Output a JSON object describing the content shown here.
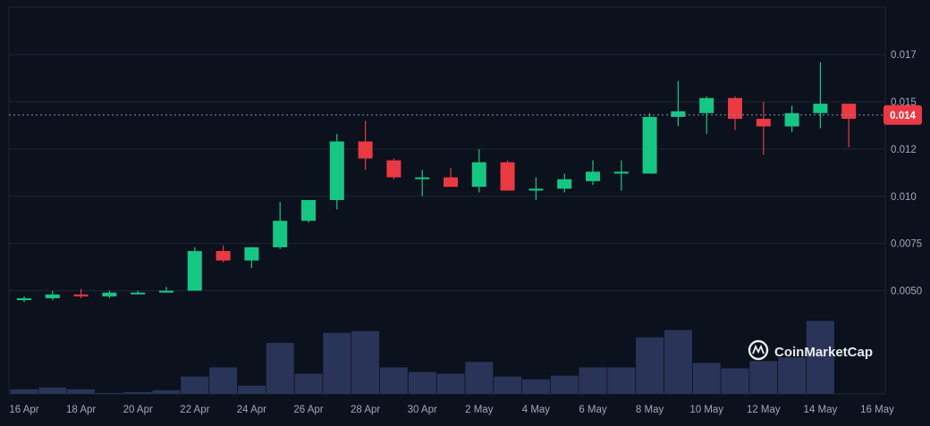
{
  "chart_data": {
    "type": "candlestick",
    "title": "",
    "xlabel": "",
    "ylabel": "",
    "ylim": [
      0.003,
      0.019
    ],
    "y_ticks": [
      {
        "value": 0.005,
        "label": "0.0050"
      },
      {
        "value": 0.0075,
        "label": "0.0075"
      },
      {
        "value": 0.01,
        "label": "0.010"
      },
      {
        "value": 0.0125,
        "label": "0.012"
      },
      {
        "value": 0.015,
        "label": "0.015"
      },
      {
        "value": 0.0175,
        "label": "0.017"
      }
    ],
    "x_tick_labels": [
      "16 Apr",
      "18 Apr",
      "20 Apr",
      "22 Apr",
      "24 Apr",
      "26 Apr",
      "28 Apr",
      "30 Apr",
      "2 May",
      "4 May",
      "6 May",
      "8 May",
      "10 May",
      "12 May",
      "14 May",
      "16 May"
    ],
    "last_price": 0.0143,
    "last_price_label": "0.014",
    "watermark": "CoinMarketCap",
    "grid": true,
    "colors": {
      "up": "#16c784",
      "down": "#ea3943",
      "volume": "#2a3458",
      "background": "#0b111d",
      "grid": "#1f2633",
      "text": "#a1a7bb"
    },
    "series": [
      {
        "date": "16 Apr",
        "open": 0.0045,
        "high": 0.0047,
        "low": 0.0044,
        "close": 0.0046,
        "volume": 5
      },
      {
        "date": "17 Apr",
        "open": 0.0046,
        "high": 0.005,
        "low": 0.0045,
        "close": 0.0048,
        "volume": 7
      },
      {
        "date": "18 Apr",
        "open": 0.0048,
        "high": 0.0051,
        "low": 0.0046,
        "close": 0.0047,
        "volume": 5
      },
      {
        "date": "19 Apr",
        "open": 0.0047,
        "high": 0.005,
        "low": 0.0046,
        "close": 0.0049,
        "volume": 1
      },
      {
        "date": "20 Apr",
        "open": 0.0049,
        "high": 0.005,
        "low": 0.0048,
        "close": 0.0049,
        "volume": 2
      },
      {
        "date": "21 Apr",
        "open": 0.0049,
        "high": 0.0052,
        "low": 0.0049,
        "close": 0.005,
        "volume": 4
      },
      {
        "date": "22 Apr",
        "open": 0.005,
        "high": 0.0073,
        "low": 0.005,
        "close": 0.0071,
        "volume": 19
      },
      {
        "date": "23 Apr",
        "open": 0.0071,
        "high": 0.0074,
        "low": 0.0065,
        "close": 0.0066,
        "volume": 29
      },
      {
        "date": "24 Apr",
        "open": 0.0066,
        "high": 0.0073,
        "low": 0.0062,
        "close": 0.0073,
        "volume": 9
      },
      {
        "date": "25 Apr",
        "open": 0.0073,
        "high": 0.0097,
        "low": 0.0072,
        "close": 0.0087,
        "volume": 56
      },
      {
        "date": "26 Apr",
        "open": 0.0087,
        "high": 0.0098,
        "low": 0.0086,
        "close": 0.0098,
        "volume": 22
      },
      {
        "date": "27 Apr",
        "open": 0.0098,
        "high": 0.0133,
        "low": 0.0093,
        "close": 0.0129,
        "volume": 67
      },
      {
        "date": "28 Apr",
        "open": 0.0129,
        "high": 0.014,
        "low": 0.0114,
        "close": 0.012,
        "volume": 69
      },
      {
        "date": "29 Apr",
        "open": 0.0119,
        "high": 0.012,
        "low": 0.0109,
        "close": 0.011,
        "volume": 29
      },
      {
        "date": "30 Apr",
        "open": 0.011,
        "high": 0.0114,
        "low": 0.01,
        "close": 0.011,
        "volume": 24
      },
      {
        "date": "1 May",
        "open": 0.011,
        "high": 0.0115,
        "low": 0.0105,
        "close": 0.0105,
        "volume": 22
      },
      {
        "date": "2 May",
        "open": 0.0105,
        "high": 0.0125,
        "low": 0.0102,
        "close": 0.0118,
        "volume": 35
      },
      {
        "date": "3 May",
        "open": 0.0118,
        "high": 0.0119,
        "low": 0.0103,
        "close": 0.0103,
        "volume": 19
      },
      {
        "date": "4 May",
        "open": 0.0103,
        "high": 0.011,
        "low": 0.0098,
        "close": 0.0104,
        "volume": 16
      },
      {
        "date": "5 May",
        "open": 0.0104,
        "high": 0.0112,
        "low": 0.0102,
        "close": 0.0109,
        "volume": 20
      },
      {
        "date": "6 May",
        "open": 0.0108,
        "high": 0.0119,
        "low": 0.0106,
        "close": 0.0113,
        "volume": 29
      },
      {
        "date": "7 May",
        "open": 0.0112,
        "high": 0.0119,
        "low": 0.0103,
        "close": 0.0113,
        "volume": 29
      },
      {
        "date": "8 May",
        "open": 0.0112,
        "high": 0.0144,
        "low": 0.0112,
        "close": 0.0142,
        "volume": 62
      },
      {
        "date": "9 May",
        "open": 0.0142,
        "high": 0.0161,
        "low": 0.0137,
        "close": 0.0145,
        "volume": 70
      },
      {
        "date": "10 May",
        "open": 0.0144,
        "high": 0.0153,
        "low": 0.0133,
        "close": 0.0152,
        "volume": 34
      },
      {
        "date": "11 May",
        "open": 0.0152,
        "high": 0.0153,
        "low": 0.0135,
        "close": 0.0141,
        "volume": 28
      },
      {
        "date": "12 May",
        "open": 0.0141,
        "high": 0.015,
        "low": 0.0122,
        "close": 0.0137,
        "volume": 36
      },
      {
        "date": "13 May",
        "open": 0.0137,
        "high": 0.0148,
        "low": 0.0134,
        "close": 0.0144,
        "volume": 40
      },
      {
        "date": "14 May",
        "open": 0.0144,
        "high": 0.0171,
        "low": 0.0136,
        "close": 0.0149,
        "volume": 80
      },
      {
        "date": "15 May",
        "open": 0.0149,
        "high": 0.0149,
        "low": 0.0126,
        "close": 0.0141,
        "volume": 0
      }
    ]
  }
}
